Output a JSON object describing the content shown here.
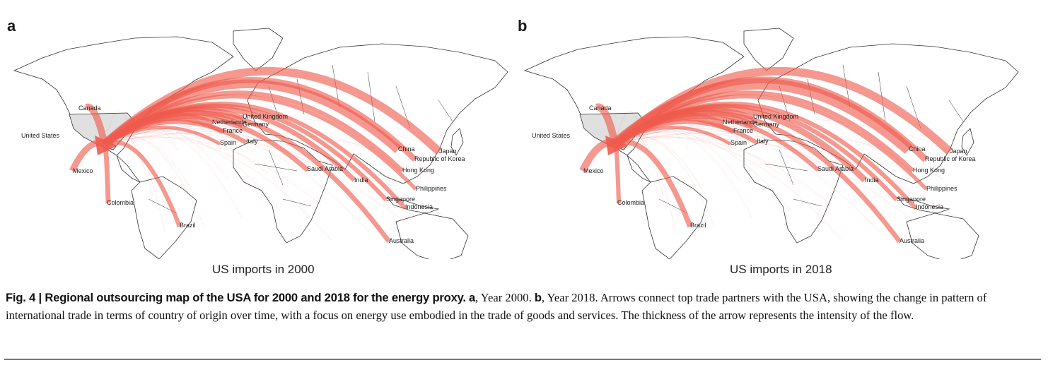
{
  "panels": [
    {
      "letter": "a",
      "caption": "US imports in 2000",
      "colors": {
        "land": "#ffffff",
        "border": "#333333",
        "usa": "#e0e0e0",
        "arrow": "#ef5a4c"
      },
      "labels": [
        "Canada",
        "United States",
        "Mexico",
        "Colombia",
        "Brazil",
        "United Kingdom",
        "Netherlands",
        "Germany",
        "France",
        "Spain",
        "Italy",
        "Saudi Arabia",
        "India",
        "China",
        "Japan",
        "Republic of Korea",
        "Hong Kong",
        "Philippines",
        "Singapore",
        "Indonesia",
        "Australia"
      ],
      "flows": [
        {
          "partner": "Canada",
          "intensity": 0.55
        },
        {
          "partner": "Mexico",
          "intensity": 0.5
        },
        {
          "partner": "Colombia",
          "intensity": 0.35
        },
        {
          "partner": "Brazil",
          "intensity": 0.3
        },
        {
          "partner": "United Kingdom",
          "intensity": 0.35
        },
        {
          "partner": "Netherlands",
          "intensity": 0.25
        },
        {
          "partner": "Germany",
          "intensity": 0.4
        },
        {
          "partner": "France",
          "intensity": 0.3
        },
        {
          "partner": "Spain",
          "intensity": 0.2
        },
        {
          "partner": "Italy",
          "intensity": 0.3
        },
        {
          "partner": "Saudi Arabia",
          "intensity": 0.35
        },
        {
          "partner": "India",
          "intensity": 0.35
        },
        {
          "partner": "China",
          "intensity": 0.75
        },
        {
          "partner": "Japan",
          "intensity": 0.7
        },
        {
          "partner": "Republic of Korea",
          "intensity": 0.45
        },
        {
          "partner": "Hong Kong",
          "intensity": 0.3
        },
        {
          "partner": "Philippines",
          "intensity": 0.25
        },
        {
          "partner": "Singapore",
          "intensity": 0.3
        },
        {
          "partner": "Indonesia",
          "intensity": 0.3
        },
        {
          "partner": "Australia",
          "intensity": 0.35
        }
      ]
    },
    {
      "letter": "b",
      "caption": "US imports in 2018",
      "colors": {
        "land": "#ffffff",
        "border": "#333333",
        "usa": "#e0e0e0",
        "arrow": "#ef5a4c"
      },
      "labels": [
        "Canada",
        "United States",
        "Mexico",
        "Colombia",
        "Brazil",
        "United Kingdom",
        "Netherlands",
        "Germany",
        "France",
        "Spain",
        "Italy",
        "Saudi Arabia",
        "India",
        "China",
        "Japan",
        "Republic of Korea",
        "Hong Kong",
        "Philippines",
        "Singapore",
        "Indonesia",
        "Australia"
      ],
      "flows": [
        {
          "partner": "Canada",
          "intensity": 0.6
        },
        {
          "partner": "Mexico",
          "intensity": 0.6
        },
        {
          "partner": "Colombia",
          "intensity": 0.3
        },
        {
          "partner": "Brazil",
          "intensity": 0.4
        },
        {
          "partner": "United Kingdom",
          "intensity": 0.35
        },
        {
          "partner": "Netherlands",
          "intensity": 0.25
        },
        {
          "partner": "Germany",
          "intensity": 0.45
        },
        {
          "partner": "France",
          "intensity": 0.3
        },
        {
          "partner": "Spain",
          "intensity": 0.2
        },
        {
          "partner": "Italy",
          "intensity": 0.3
        },
        {
          "partner": "Saudi Arabia",
          "intensity": 0.3
        },
        {
          "partner": "India",
          "intensity": 0.5
        },
        {
          "partner": "China",
          "intensity": 1.0
        },
        {
          "partner": "Japan",
          "intensity": 0.7
        },
        {
          "partner": "Republic of Korea",
          "intensity": 0.55
        },
        {
          "partner": "Hong Kong",
          "intensity": 0.3
        },
        {
          "partner": "Philippines",
          "intensity": 0.25
        },
        {
          "partner": "Singapore",
          "intensity": 0.3
        },
        {
          "partner": "Indonesia",
          "intensity": 0.3
        },
        {
          "partner": "Australia",
          "intensity": 0.35
        }
      ]
    }
  ],
  "figure_caption": {
    "fig_label": "Fig. 4 | ",
    "title": "Regional outsourcing map of the USA for 2000 and 2018 for the energy proxy.",
    "part_a_letter": "a",
    "part_a_text": ", Year 2000. ",
    "part_b_letter": "b",
    "part_b_text": ", Year 2018. Arrows connect top trade partners with the USA, showing the change in pattern of international trade in terms of country of origin over time, with a focus on energy use embodied in the trade of goods and services. The thickness of the arrow represents the intensity of the flow."
  }
}
